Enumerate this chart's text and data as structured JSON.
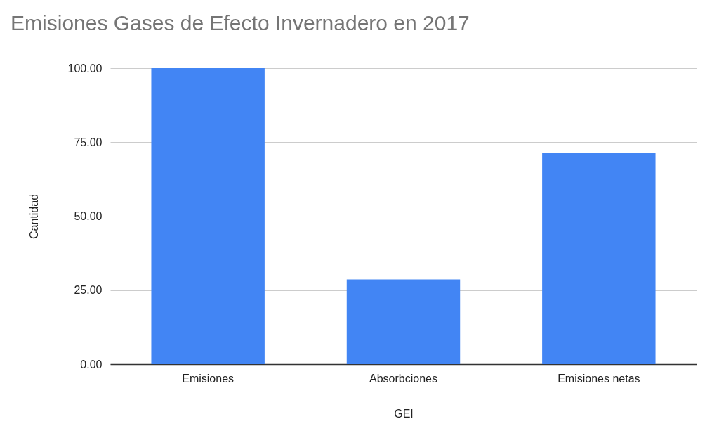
{
  "chart_data": {
    "type": "bar",
    "title": "Emisiones Gases de Efecto Invernadero en 2017",
    "xlabel": "GEI",
    "ylabel": "Cantidad",
    "categories": [
      "Emisiones",
      "Absorbciones",
      "Emisiones netas"
    ],
    "values": [
      100,
      28.6,
      71.4
    ],
    "color": "#4285f4",
    "ylim": [
      0,
      100
    ],
    "yticks": [
      {
        "value": 0,
        "label": "0.00"
      },
      {
        "value": 25,
        "label": "25.00"
      },
      {
        "value": 50,
        "label": "50.00"
      },
      {
        "value": 75,
        "label": "75.00"
      },
      {
        "value": 100,
        "label": "100.00"
      }
    ],
    "grid": "y"
  }
}
